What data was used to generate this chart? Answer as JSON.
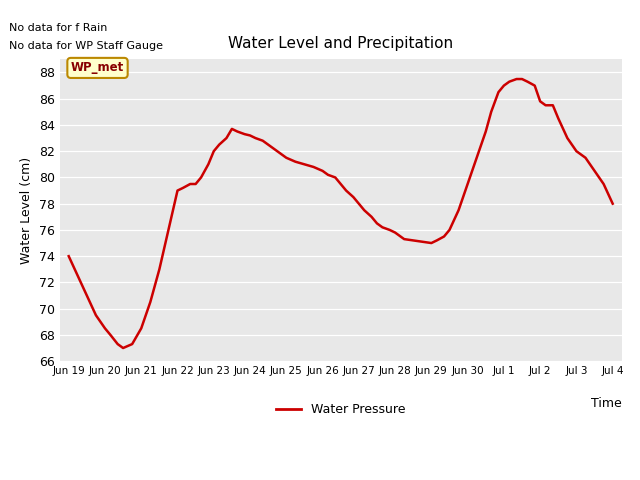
{
  "title": "Water Level and Precipitation",
  "xlabel": "Time",
  "ylabel": "Water Level (cm)",
  "legend_label": "Water Pressure",
  "line_color": "#cc0000",
  "line_width": 1.8,
  "plot_bg_color": "#e8e8e8",
  "ylim": [
    66,
    89
  ],
  "yticks": [
    66,
    68,
    70,
    72,
    74,
    76,
    78,
    80,
    82,
    84,
    86,
    88
  ],
  "no_data_text1": "No data for f Rain",
  "no_data_text2": "No data for WP Staff Gauge",
  "legend_box_label": "WP_met",
  "legend_box_bg": "#ffffcc",
  "legend_box_border": "#bb8800",
  "xtick_labels": [
    "Jun 19",
    "Jun 20",
    "Jun 21",
    "Jun 22",
    "Jun 23",
    "Jun 24",
    "Jun 25",
    "Jun 26",
    "Jun 27",
    "Jun 28",
    "Jun 29",
    "Jun 30",
    "Jul 1",
    "Jul 2",
    "Jul 3",
    "Jul 4"
  ],
  "x_all": [
    0.0,
    0.5,
    1.0,
    1.5,
    2.0,
    2.3,
    2.7,
    3.0,
    3.5,
    4.0,
    4.5,
    5.0,
    5.5,
    6.0,
    6.3,
    6.7,
    7.0,
    7.3,
    7.7,
    8.0,
    8.3,
    8.7,
    9.0,
    9.3,
    9.7,
    10.0,
    10.3,
    10.7,
    11.0,
    11.5,
    12.0,
    12.5,
    13.0,
    13.5,
    14.0,
    14.3,
    14.7,
    15.0,
    15.3,
    15.7,
    16.0,
    16.3,
    16.7,
    17.0,
    17.3,
    17.7,
    18.0,
    18.3,
    18.5,
    19.0,
    19.5,
    20.0,
    20.3,
    20.7,
    21.0,
    21.5,
    22.0,
    22.5,
    23.0,
    23.3,
    23.7,
    24.0,
    24.3,
    24.7,
    25.0,
    25.3,
    25.7,
    26.0,
    26.3,
    26.7,
    27.0,
    27.5,
    28.0,
    28.5,
    29.0,
    29.5,
    30.0
  ],
  "y_all": [
    74.0,
    72.5,
    71.0,
    69.5,
    68.5,
    68.0,
    67.3,
    67.0,
    67.3,
    68.5,
    70.5,
    73.0,
    76.0,
    79.0,
    79.2,
    79.5,
    79.5,
    80.0,
    81.0,
    82.0,
    82.5,
    83.0,
    83.7,
    83.5,
    83.3,
    83.2,
    83.0,
    82.8,
    82.5,
    82.0,
    81.5,
    81.2,
    81.0,
    80.8,
    80.5,
    80.2,
    80.0,
    79.5,
    79.0,
    78.5,
    78.0,
    77.5,
    77.0,
    76.5,
    76.2,
    76.0,
    75.8,
    75.5,
    75.3,
    75.2,
    75.1,
    75.0,
    75.2,
    75.5,
    76.0,
    77.5,
    79.5,
    81.5,
    83.5,
    85.0,
    86.5,
    87.0,
    87.3,
    87.5,
    87.5,
    87.3,
    87.0,
    85.8,
    85.5,
    85.5,
    84.5,
    83.0,
    82.0,
    81.5,
    80.5,
    79.5,
    78.0
  ]
}
